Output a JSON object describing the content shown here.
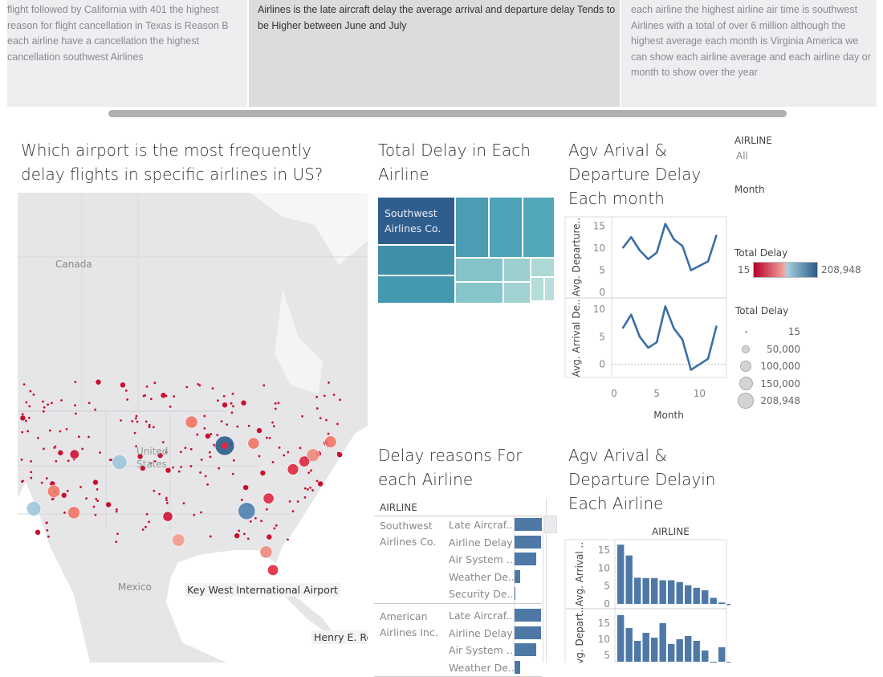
{
  "story_notes": [
    "flight followed by California with 401 the highest reason for flight cancellation in Texas is Reason B each airline have a cancellation the highest cancellation  southwest Airlines",
    "Airlines is the late aircraft delay the average arrival and departure delay Tends to be Higher between June and July",
    "each airline the highest airline air time is southwest Airlines with a total of over 6 million although the highest average each month is Virginia America we can show each airline average and each airline day or month to show over the year"
  ],
  "map": {
    "title": "Which airport is the most frequently delay flights in specific airlines in US?",
    "labels": {
      "canada": "Canada",
      "us": "United States",
      "mexico": "Mexico"
    },
    "tooltips": [
      "Key West International Airport",
      "Henry E. Ro"
    ],
    "bubbles": [
      {
        "lat": 41.9,
        "lon": -87.9,
        "color": "#2c5c88",
        "delay": 208948
      },
      {
        "lat": 33.6,
        "lon": -84.4,
        "color": "#4f7fb0",
        "delay": 150000
      },
      {
        "lat": 39.8,
        "lon": -104.7,
        "color": "#9ec5dc",
        "delay": 100000
      },
      {
        "lat": 33.9,
        "lon": -118.4,
        "color": "#9ec5dc",
        "delay": 90000
      },
      {
        "lat": 36.1,
        "lon": -115.2,
        "color": "#ef7567",
        "delay": 60000
      },
      {
        "lat": 33.4,
        "lon": -112.0,
        "color": "#ef7567",
        "delay": 55000
      },
      {
        "lat": 44.9,
        "lon": -93.2,
        "color": "#ef7567",
        "delay": 55000
      },
      {
        "lat": 42.2,
        "lon": -83.3,
        "color": "#ef7567",
        "delay": 45000
      },
      {
        "lat": 29.9,
        "lon": -95.3,
        "color": "#f4998c",
        "delay": 60000
      },
      {
        "lat": 28.4,
        "lon": -81.3,
        "color": "#f08a7c",
        "delay": 55000
      },
      {
        "lat": 40.7,
        "lon": -73.8,
        "color": "#f08a7c",
        "delay": 65000
      },
      {
        "lat": 42.4,
        "lon": -71.0,
        "color": "#ef7567",
        "delay": 50000
      },
      {
        "lat": 39.9,
        "lon": -75.2,
        "color": "#e0283f",
        "delay": 35000
      },
      {
        "lat": 38.9,
        "lon": -77.0,
        "color": "#e0283f",
        "delay": 40000
      },
      {
        "lat": 35.2,
        "lon": -80.9,
        "color": "#e0283f",
        "delay": 35000
      },
      {
        "lat": 26.1,
        "lon": -80.2,
        "color": "#e0283f",
        "delay": 35000
      },
      {
        "lat": 32.9,
        "lon": -97.0,
        "color": "#cf1035",
        "delay": 25000
      },
      {
        "lat": 40.8,
        "lon": -111.9,
        "color": "#cf1035",
        "delay": 20000
      }
    ]
  },
  "treemap": {
    "title": "Total Delay in Each Airline",
    "top_label": "Southwest Airlines Co."
  },
  "month_chart": {
    "title": "Agv Arival & Departure Delay Each month",
    "chart_data": {
      "type": "line",
      "x": [
        1,
        2,
        3,
        4,
        5,
        6,
        7,
        8,
        9,
        10,
        11,
        12
      ],
      "xlabel": "Month",
      "xticks": [
        "0",
        "5",
        "10"
      ],
      "series": [
        {
          "name": "Avg. Departure..",
          "values": [
            10,
            12.5,
            9.5,
            7.5,
            9,
            15.5,
            12,
            10.5,
            5,
            6,
            7,
            13
          ],
          "yticks": [
            "15",
            "10",
            "5",
            "0"
          ],
          "ylim": [
            0,
            16
          ]
        },
        {
          "name": "Avg. Arrival De..",
          "values": [
            6.5,
            9,
            5,
            3,
            4,
            10.5,
            6.5,
            4.5,
            -1,
            0,
            1,
            7
          ],
          "yticks": [
            "10",
            "5",
            "0"
          ],
          "ylim": [
            -1.5,
            11
          ]
        }
      ],
      "color": "#3b6ea5"
    }
  },
  "filters": {
    "airline_label": "AIRLINE",
    "airline_value": "All",
    "month_label": "Month"
  },
  "color_legend": {
    "title": "Total Delay",
    "min": "15",
    "max": "208,948",
    "colors": [
      "#b5002a",
      "#f4a6a0",
      "#a8cfe0",
      "#2c5c88"
    ]
  },
  "size_legend": {
    "title": "Total Delay",
    "items": [
      "15",
      "50,000",
      "100,000",
      "150,000",
      "208,948"
    ]
  },
  "reasons": {
    "title": "Delay reasons For each Airline",
    "column_header": "AIRLINE",
    "groups": [
      {
        "airline": "Southwest Airlines Co.",
        "reasons": [
          {
            "label": "Late Aircraf..",
            "value": 1.0
          },
          {
            "label": "Airline Delay",
            "value": 0.98
          },
          {
            "label": "Air System ..",
            "value": 0.78
          },
          {
            "label": "Weather De..",
            "value": 0.22
          },
          {
            "label": "Security De..",
            "value": 0.01
          }
        ]
      },
      {
        "airline": "American Airlines Inc.",
        "reasons": [
          {
            "label": "Late Aircraf..",
            "value": 0.98
          },
          {
            "label": "Airline Delay",
            "value": 0.98
          },
          {
            "label": "Air System ..",
            "value": 0.78
          },
          {
            "label": "Weather De..",
            "value": 0.2
          }
        ]
      }
    ]
  },
  "airline_chart": {
    "title": "Agv Arival & Departure Delayin Each Airline",
    "chart_data": {
      "type": "bar",
      "xlabel": "AIRLINE",
      "series": [
        {
          "name": "Avg. Arrival ..",
          "values": [
            16.5,
            13.5,
            7.3,
            7.2,
            7.2,
            6.6,
            6.6,
            6.1,
            5.2,
            4.5,
            3.8,
            1.7,
            0.4,
            -0.3
          ],
          "yticks": [
            "15",
            "10",
            "5",
            "0"
          ],
          "ylim": [
            0,
            17
          ]
        },
        {
          "name": "Avg. Depart..",
          "values": [
            17.5,
            13.5,
            9.5,
            12,
            10.5,
            15,
            8.5,
            10,
            11,
            9.5,
            6.5,
            2,
            7.5,
            1
          ],
          "yticks": [
            "15",
            "10",
            "5"
          ],
          "ylim": [
            3,
            18
          ]
        }
      ],
      "color": "#4e79a7"
    }
  }
}
